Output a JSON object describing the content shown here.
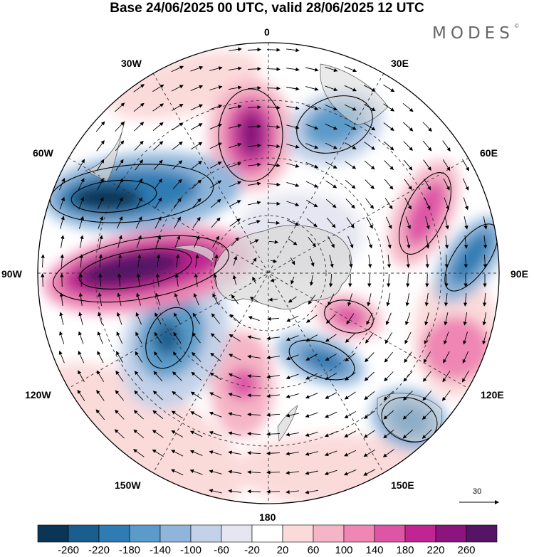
{
  "title": "Base 24/06/2025 00 UTC, valid 28/06/2025 12 UTC",
  "brand": "MODES",
  "brand_mark": "©",
  "longitude_labels": {
    "lon_0": "0",
    "lon_30e": "30E",
    "lon_60e": "60E",
    "lon_90e": "90E",
    "lon_120e": "120E",
    "lon_150e": "150E",
    "lon_180": "180",
    "lon_150w": "150W",
    "lon_120w": "120W",
    "lon_90w": "90W",
    "lon_60w": "60W",
    "lon_30w": "30W"
  },
  "reference_vector": {
    "value": "30"
  },
  "colorbar": {
    "ticks": [
      "-260",
      "-220",
      "-180",
      "-140",
      "-100",
      "-60",
      "-20",
      "20",
      "60",
      "100",
      "140",
      "180",
      "220",
      "260"
    ],
    "colors": [
      "#0b3556",
      "#1a5e8e",
      "#2f7bb3",
      "#5c9bc9",
      "#8fb6da",
      "#c3d2e8",
      "#e6e6f2",
      "#ffffff",
      "#fbdada",
      "#f5b5c6",
      "#ef86b4",
      "#de55a6",
      "#c02592",
      "#8c147e",
      "#551466"
    ]
  }
}
